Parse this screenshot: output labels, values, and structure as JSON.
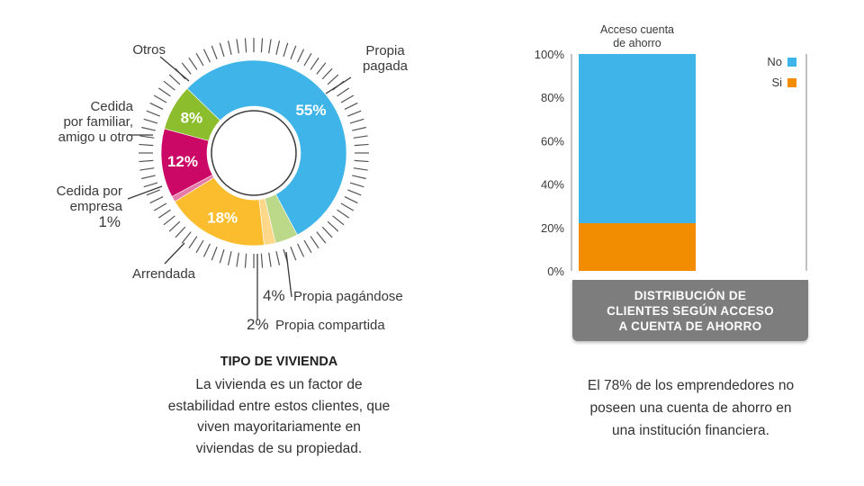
{
  "chart_data": [
    {
      "type": "pie",
      "title": "TIPO DE VIVIENDA",
      "slices": [
        {
          "label": "Propia pagada",
          "value": 55,
          "value_label": "55%",
          "color": "#3fb4e8"
        },
        {
          "label": "Propia pagándose",
          "value": 4,
          "value_label": "4%",
          "color": "#bcd98a"
        },
        {
          "label": "Propia compartida",
          "value": 2,
          "value_label": "2%",
          "color": "#fdd88a"
        },
        {
          "label": "Arrendada",
          "value": 18,
          "value_label": "18%",
          "color": "#fbbd2e"
        },
        {
          "label": "Cedida por empresa",
          "value": 1,
          "value_label": "1%",
          "color": "#e67aa8"
        },
        {
          "label": "Cedida por familiar, amigo u otro",
          "value": 12,
          "value_label": "12%",
          "color": "#cc0866"
        },
        {
          "label": "Otros",
          "value": 8,
          "value_label": "8%",
          "color": "#8cbd2c"
        }
      ]
    },
    {
      "type": "bar",
      "stacked": true,
      "categories": [
        "Acceso cuenta de ahorro"
      ],
      "series": [
        {
          "name": "No",
          "values": [
            78
          ],
          "color": "#3fb4e8"
        },
        {
          "name": "Si",
          "values": [
            22
          ],
          "color": "#f28c00"
        }
      ],
      "ylim": [
        0,
        100
      ],
      "y_ticks": [
        "0%",
        "20%",
        "40%",
        "60%",
        "80%",
        "100%"
      ],
      "legend": "top-right",
      "title": "DISTRIBUCIÓN DE CLIENTES SEGÚN ACCESO A CUENTA DE AHORRO"
    }
  ],
  "left_text": {
    "title": "TIPO DE VIVIENDA",
    "body_lines": [
      "La vivienda es un factor de",
      "estabilidad entre estos clientes, que",
      "viven mayoritariamente en",
      "viviendas de su propiedad."
    ]
  },
  "donut_labels": {
    "otros": "Otros",
    "propia_pagada": [
      "Propia",
      "pagada"
    ],
    "cedida_familiar": [
      "Cedida",
      "por familiar,",
      "amigo u otro"
    ],
    "cedida_empresa": [
      "Cedida por",
      "empresa"
    ],
    "cedida_empresa_pct": "1%",
    "arrendada": "Arrendada",
    "pagandose_pct": "4%",
    "pagandose": "Propia pagándose",
    "compartida_pct": "2%",
    "compartida": "Propia compartida"
  },
  "bar_labels": {
    "category_lines": [
      "Acceso cuenta",
      "de ahorro"
    ]
  },
  "caption_lines": [
    "DISTRIBUCIÓN DE",
    "CLIENTES SEGÚN ACCESO",
    "A CUENTA DE AHORRO"
  ],
  "right_text_lines": [
    "El 78% de los emprendedores no",
    "poseen una cuenta de ahorro en",
    "una institución financiera."
  ]
}
